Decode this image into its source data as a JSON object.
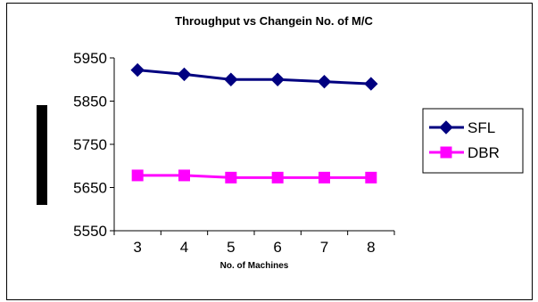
{
  "chart_data": {
    "type": "line",
    "title": "Throughput vs Changein No. of M/C",
    "xlabel": "No. of Machines",
    "ylabel": "",
    "categories": [
      "3",
      "4",
      "5",
      "6",
      "7",
      "8"
    ],
    "ylim": [
      5550,
      5950
    ],
    "yticks": [
      5550,
      5650,
      5750,
      5850,
      5950
    ],
    "grid": false,
    "legend_position": "right",
    "series": [
      {
        "name": "SFL",
        "values": [
          5922,
          5912,
          5900,
          5900,
          5895,
          5890
        ],
        "color": "#000080",
        "marker": "diamond"
      },
      {
        "name": "DBR",
        "values": [
          5678,
          5678,
          5673,
          5673,
          5673,
          5673
        ],
        "color": "#FF00FF",
        "marker": "square"
      }
    ]
  }
}
